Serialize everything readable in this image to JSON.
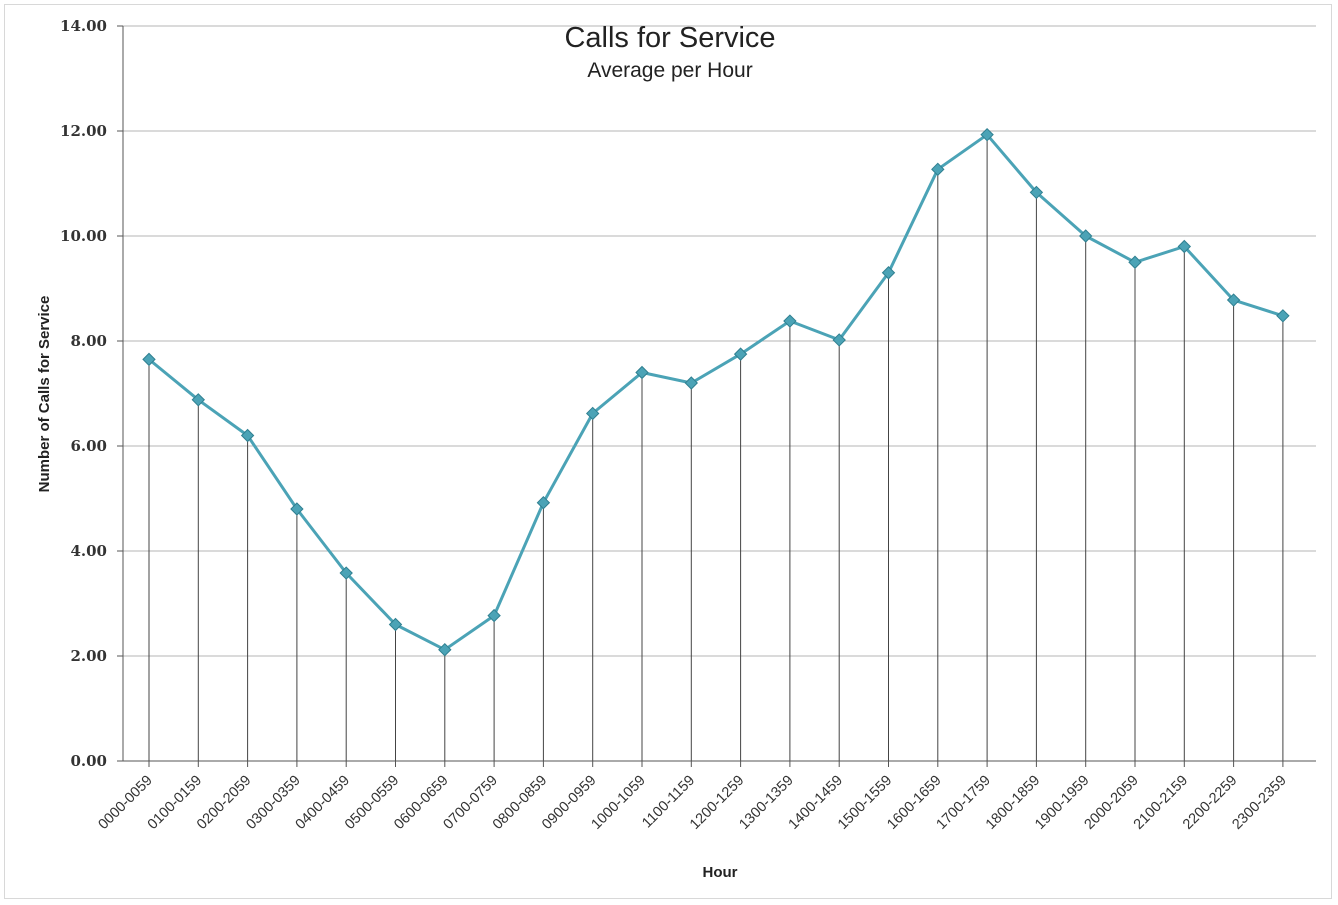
{
  "chart_data": {
    "type": "line",
    "title": "Calls for Service",
    "subtitle": "Average per Hour",
    "xlabel": "Hour",
    "ylabel": "Number of Calls for Service",
    "ylim": [
      0,
      14
    ],
    "yticks": [
      "0.00",
      "2.00",
      "4.00",
      "6.00",
      "8.00",
      "10.00",
      "12.00",
      "14.00"
    ],
    "grid": true,
    "drop_lines": true,
    "legend": "none",
    "categories": [
      "0000-0059",
      "0100-0159",
      "0200-2059",
      "0300-0359",
      "0400-0459",
      "0500-0559",
      "0600-0659",
      "0700-0759",
      "0800-0859",
      "0900-0959",
      "1000-1059",
      "1100-1159",
      "1200-1259",
      "1300-1359",
      "1400-1459",
      "1500-1559",
      "1600-1659",
      "1700-1759",
      "1800-1859",
      "1900-1959",
      "2000-2059",
      "2100-2159",
      "2200-2259",
      "2300-2359"
    ],
    "series": [
      {
        "values": [
          7.65,
          6.88,
          6.2,
          4.8,
          3.58,
          2.6,
          2.12,
          2.77,
          4.92,
          6.62,
          7.4,
          7.2,
          7.75,
          8.38,
          8.02,
          9.3,
          11.27,
          11.93,
          10.83,
          10.0,
          9.5,
          9.8,
          8.78,
          8.48
        ],
        "color": "#4ba3b6"
      }
    ],
    "colors": {
      "line": "#4ba3b6",
      "marker": "#4ba3b6",
      "gridline": "#b4b4b4",
      "dropline": "#444444"
    }
  }
}
